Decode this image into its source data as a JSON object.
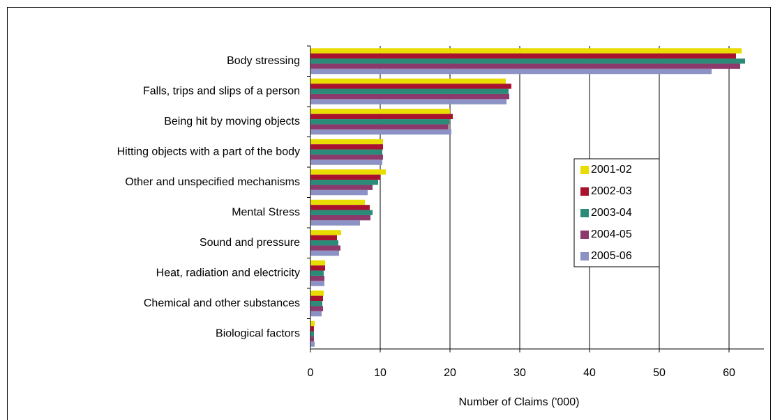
{
  "chart_data": {
    "type": "hbar",
    "x_label": "Number of Claims ('000)",
    "categories": [
      "Body stressing",
      "Falls, trips and slips of a person",
      "Being hit by moving objects",
      "Hitting objects with a part of the body",
      "Other and unspecified mechanisms",
      "Mental Stress",
      "Sound and pressure",
      "Heat, radiation and electricity",
      "Chemical and other substances",
      "Biological factors"
    ],
    "series": [
      {
        "name": "2001-02",
        "color": "#e8dc00",
        "values": [
          61.8,
          28.0,
          20.0,
          10.4,
          10.8,
          7.8,
          4.4,
          2.1,
          1.9,
          0.6
        ]
      },
      {
        "name": "2002-03",
        "color": "#a8122e",
        "values": [
          61.0,
          28.8,
          20.4,
          10.4,
          10.0,
          8.5,
          3.8,
          2.1,
          1.8,
          0.5
        ]
      },
      {
        "name": "2003-04",
        "color": "#2a8c78",
        "values": [
          62.3,
          28.4,
          19.9,
          10.3,
          9.7,
          8.9,
          4.0,
          1.9,
          1.7,
          0.5
        ]
      },
      {
        "name": "2004-05",
        "color": "#8c3a6c",
        "values": [
          61.6,
          28.5,
          19.8,
          10.4,
          8.9,
          8.6,
          4.3,
          2.0,
          1.8,
          0.5
        ]
      },
      {
        "name": "2005-06",
        "color": "#8c92c4",
        "values": [
          57.5,
          28.1,
          20.2,
          10.3,
          8.2,
          7.1,
          4.1,
          2.0,
          1.6,
          0.6
        ]
      }
    ],
    "xlim": [
      0,
      65
    ],
    "xticks": [
      0,
      10,
      20,
      30,
      40,
      50,
      60
    ],
    "grid": true
  }
}
